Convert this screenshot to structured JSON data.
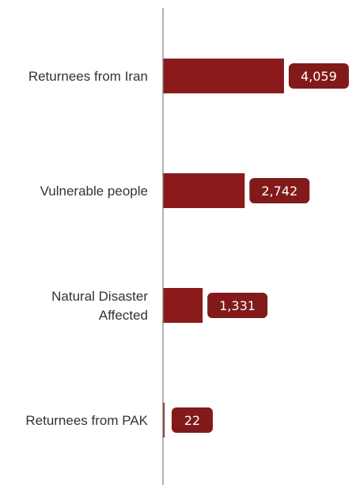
{
  "chart_data": {
    "type": "bar",
    "orientation": "horizontal",
    "categories": [
      [
        "Returnees from Iran"
      ],
      [
        "Vulnerable people"
      ],
      [
        "Natural Disaster",
        "Affected"
      ],
      [
        "Returnees from PAK"
      ]
    ],
    "values": [
      4059,
      2742,
      1331,
      22
    ],
    "value_labels": [
      "4,059",
      "2,742",
      "1,331",
      "22"
    ],
    "title": "",
    "xlabel": "",
    "ylabel": "",
    "xlim": [
      0,
      5775
    ],
    "grid": false,
    "legend": "none",
    "colors": {
      "bar": "#8b1a1a",
      "label_badge": "#821a1a",
      "axis": "#888888",
      "category_text": "#333333",
      "value_text": "#ffffff"
    }
  }
}
